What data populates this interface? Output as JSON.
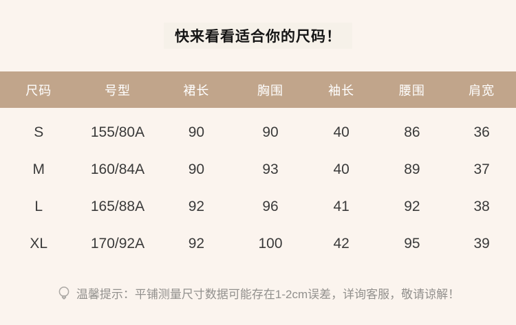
{
  "page": {
    "background_color": "#fbf4ee",
    "header_band_color": "#c1a58b",
    "title_box_color": "#f6f1e9"
  },
  "title": "快来看看适合你的尺码！",
  "size_table": {
    "headers": [
      "尺码",
      "号型",
      "裙长",
      "胸围",
      "袖长",
      "腰围",
      "肩宽"
    ],
    "rows": [
      [
        "S",
        "155/80A",
        "90",
        "90",
        "40",
        "86",
        "36"
      ],
      [
        "M",
        "160/84A",
        "90",
        "93",
        "40",
        "89",
        "37"
      ],
      [
        "L",
        "165/88A",
        "92",
        "96",
        "41",
        "92",
        "38"
      ],
      [
        "XL",
        "170/92A",
        "92",
        "100",
        "42",
        "95",
        "39"
      ]
    ]
  },
  "note": {
    "icon": "lightbulb-icon",
    "text": "温馨提示：平铺测量尺寸数据可能存在1-2cm误差，详询客服，敬请谅解！"
  }
}
